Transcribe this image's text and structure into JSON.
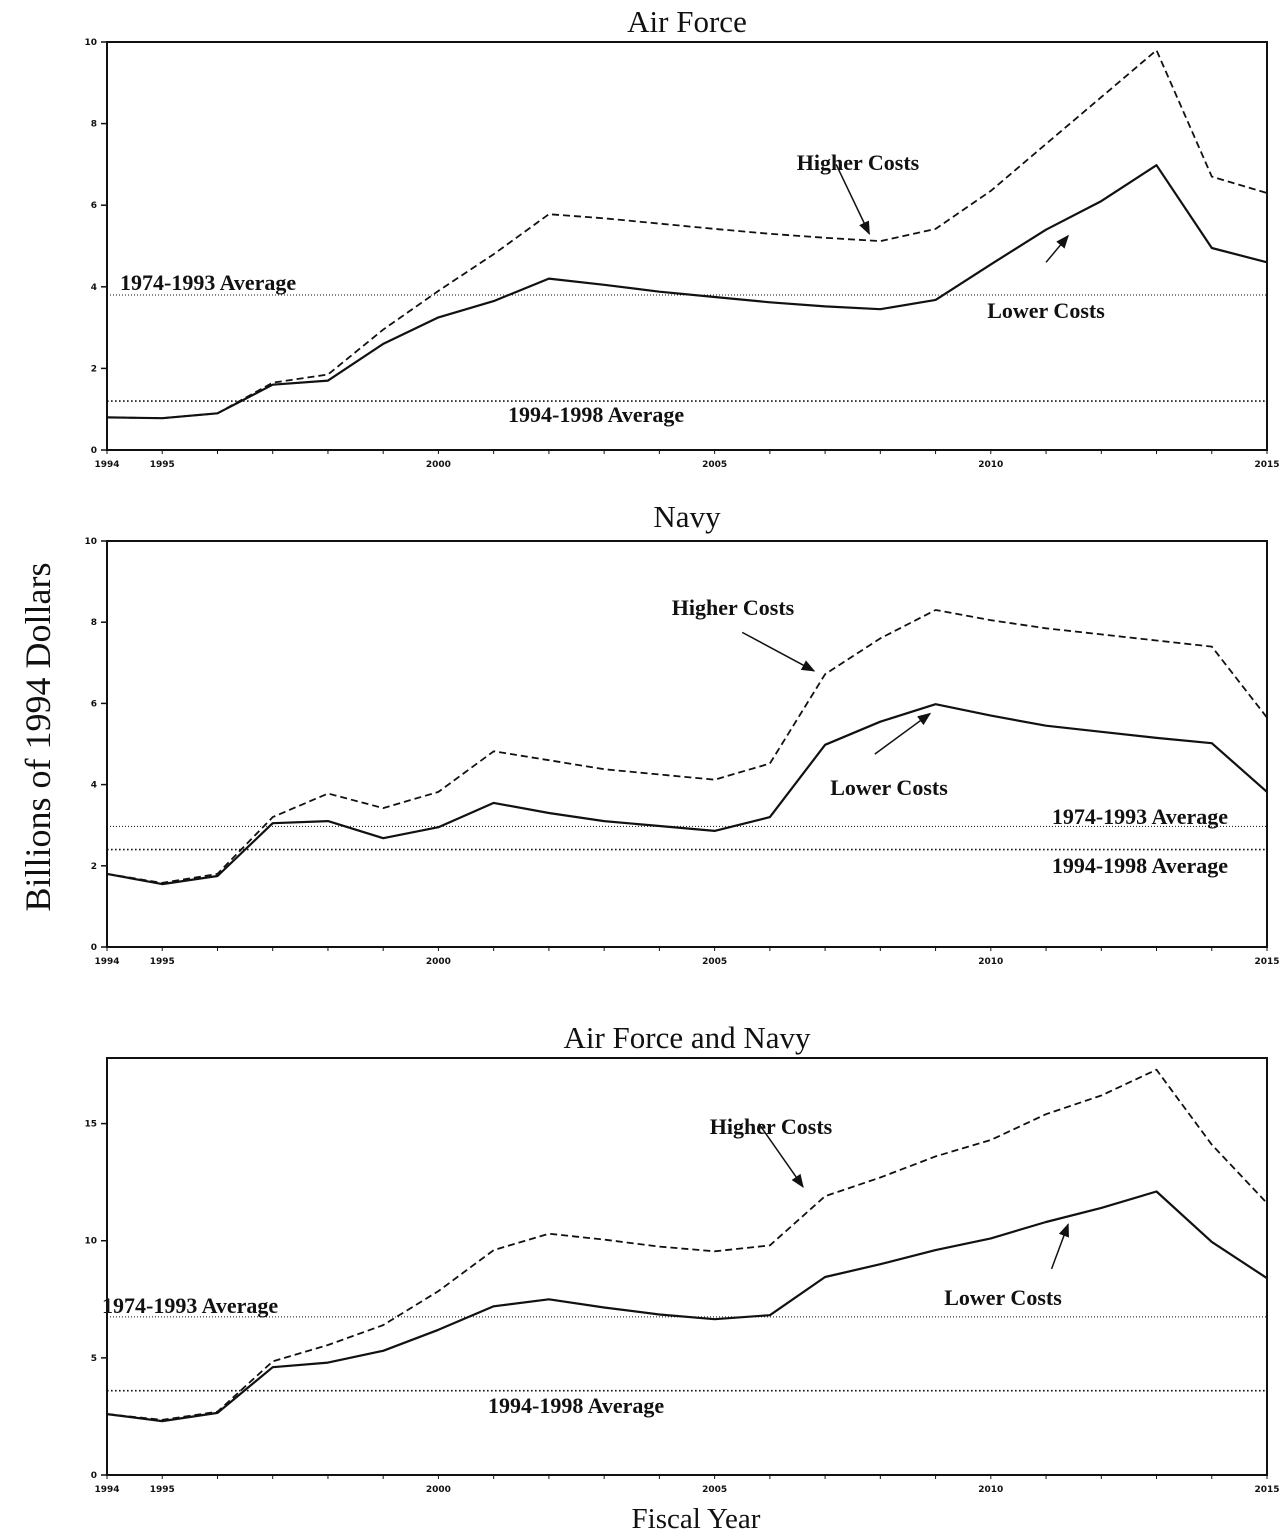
{
  "figure": {
    "ylabel": "Billions of 1994 Dollars",
    "xlabel": "Fiscal Year"
  },
  "chart_data": [
    {
      "type": "line",
      "title": "Air Force",
      "x": [
        1994,
        1995,
        1996,
        1997,
        1998,
        1999,
        2000,
        2001,
        2002,
        2003,
        2004,
        2005,
        2006,
        2007,
        2008,
        2009,
        2010,
        2011,
        2012,
        2013,
        2014,
        2015
      ],
      "xticks": [
        1994,
        1995,
        2000,
        2005,
        2010,
        2015
      ],
      "yticks": [
        0,
        2,
        4,
        6,
        8,
        10
      ],
      "ylim": [
        0,
        10
      ],
      "xlim": [
        1994,
        2015
      ],
      "grid": false,
      "series": [
        {
          "name": "Higher Costs",
          "style": "dashed",
          "values": [
            0.8,
            0.78,
            0.9,
            1.65,
            1.85,
            2.95,
            3.9,
            4.8,
            5.78,
            5.68,
            5.55,
            5.42,
            5.3,
            5.2,
            5.12,
            5.42,
            6.35,
            7.5,
            8.65,
            9.8,
            6.7,
            6.3
          ]
        },
        {
          "name": "Lower Costs",
          "style": "solid",
          "values": [
            0.8,
            0.78,
            0.9,
            1.6,
            1.7,
            2.6,
            3.25,
            3.65,
            4.2,
            4.05,
            3.88,
            3.75,
            3.62,
            3.52,
            3.45,
            3.68,
            4.55,
            5.4,
            6.1,
            6.98,
            4.95,
            4.6
          ]
        }
      ],
      "reference_lines": [
        {
          "label": "1974-1993 Average",
          "value": 3.8
        },
        {
          "label": "1994-1998 Average",
          "value": 1.2
        }
      ],
      "annotations": [
        "Higher Costs",
        "Lower Costs"
      ]
    },
    {
      "type": "line",
      "title": "Navy",
      "x": [
        1994,
        1995,
        1996,
        1997,
        1998,
        1999,
        2000,
        2001,
        2002,
        2003,
        2004,
        2005,
        2006,
        2007,
        2008,
        2009,
        2010,
        2011,
        2012,
        2013,
        2014,
        2015
      ],
      "xticks": [
        1994,
        1995,
        2000,
        2005,
        2010,
        2015
      ],
      "yticks": [
        0,
        2,
        4,
        6,
        8,
        10
      ],
      "ylim": [
        0,
        10
      ],
      "xlim": [
        1994,
        2015
      ],
      "grid": false,
      "series": [
        {
          "name": "Higher Costs",
          "style": "dashed",
          "values": [
            1.8,
            1.58,
            1.8,
            3.2,
            3.78,
            3.42,
            3.82,
            4.82,
            4.6,
            4.38,
            4.25,
            4.12,
            4.52,
            6.72,
            7.6,
            8.3,
            8.05,
            7.85,
            7.7,
            7.55,
            7.4,
            5.65
          ]
        },
        {
          "name": "Lower Costs",
          "style": "solid",
          "values": [
            1.8,
            1.55,
            1.75,
            3.05,
            3.1,
            2.68,
            2.95,
            3.55,
            3.3,
            3.1,
            2.98,
            2.86,
            3.2,
            4.98,
            5.55,
            5.98,
            5.7,
            5.45,
            5.3,
            5.15,
            5.02,
            3.82
          ]
        }
      ],
      "reference_lines": [
        {
          "label": "1974-1993 Average",
          "value": 2.97
        },
        {
          "label": "1994-1998 Average",
          "value": 2.4
        }
      ],
      "annotations": [
        "Higher Costs",
        "Lower Costs"
      ]
    },
    {
      "type": "line",
      "title": "Air Force and Navy",
      "x": [
        1994,
        1995,
        1996,
        1997,
        1998,
        1999,
        2000,
        2001,
        2002,
        2003,
        2004,
        2005,
        2006,
        2007,
        2008,
        2009,
        2010,
        2011,
        2012,
        2013,
        2014,
        2015
      ],
      "xticks": [
        1994,
        1995,
        2000,
        2005,
        2010,
        2015
      ],
      "yticks": [
        0,
        5,
        10,
        15
      ],
      "ylim": [
        0,
        17.8
      ],
      "xlim": [
        1994,
        2015
      ],
      "grid": false,
      "series": [
        {
          "name": "Higher Costs",
          "style": "dashed",
          "values": [
            2.6,
            2.35,
            2.7,
            4.85,
            5.55,
            6.4,
            7.85,
            9.6,
            10.3,
            10.05,
            9.75,
            9.55,
            9.8,
            11.9,
            12.7,
            13.6,
            14.3,
            15.4,
            16.2,
            17.3,
            14.1,
            11.6
          ]
        },
        {
          "name": "Lower Costs",
          "style": "solid",
          "values": [
            2.6,
            2.3,
            2.65,
            4.6,
            4.8,
            5.3,
            6.2,
            7.2,
            7.5,
            7.15,
            6.85,
            6.65,
            6.82,
            8.45,
            9.0,
            9.6,
            10.1,
            10.8,
            11.4,
            12.1,
            9.95,
            8.4
          ]
        }
      ],
      "reference_lines": [
        {
          "label": "1974-1993 Average",
          "value": 6.75
        },
        {
          "label": "1994-1998 Average",
          "value": 3.6
        }
      ],
      "annotations": [
        "Higher Costs",
        "Lower Costs"
      ]
    }
  ]
}
